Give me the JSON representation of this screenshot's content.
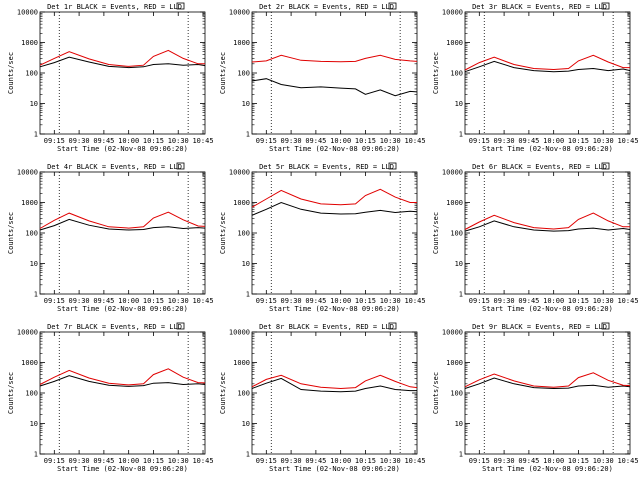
{
  "colors": {
    "events": "#000000",
    "lld": "#e00000",
    "axis": "#000000"
  },
  "chart_data": [
    {
      "type": "line",
      "title": "Det 1r BLACK = Events, RED = LLD",
      "xlabel": "Start Time (02-Nov-08 09:06:20)",
      "ylabel": "Counts/sec",
      "yscale": "log",
      "ylim": [
        1,
        10000
      ],
      "x_ticks": [
        "09:15",
        "09:30",
        "09:45",
        "10:00",
        "10:15",
        "10:30",
        "10:45"
      ],
      "y_ticks": [
        "1",
        "10",
        "100",
        "1000",
        "10000"
      ],
      "x_hours": [
        9.1056,
        9.25,
        9.4,
        9.6,
        9.8,
        10.0,
        10.15,
        10.25,
        10.4,
        10.55,
        10.7,
        10.77
      ],
      "series": [
        {
          "name": "Events",
          "values": [
            160,
            220,
            330,
            230,
            165,
            150,
            160,
            190,
            200,
            180,
            190,
            175
          ]
        },
        {
          "name": "LLD",
          "values": [
            180,
            300,
            500,
            290,
            190,
            165,
            180,
            350,
            550,
            300,
            200,
            200
          ]
        }
      ]
    },
    {
      "type": "line",
      "title": "Det 2r BLACK = Events, RED = LLD",
      "xlabel": "Start Time (02-Nov-08 09:06:20)",
      "ylabel": "Counts/sec",
      "yscale": "log",
      "ylim": [
        1,
        10000
      ],
      "x_ticks": [
        "09:15",
        "09:30",
        "09:45",
        "10:00",
        "10:15",
        "10:30",
        "10:45"
      ],
      "y_ticks": [
        "1",
        "10",
        "100",
        "1000",
        "10000"
      ],
      "x_hours": [
        9.1056,
        9.25,
        9.4,
        9.6,
        9.8,
        10.0,
        10.15,
        10.25,
        10.4,
        10.55,
        10.7,
        10.77
      ],
      "series": [
        {
          "name": "Events",
          "values": [
            55,
            65,
            42,
            33,
            35,
            32,
            30,
            20,
            28,
            18,
            25,
            24
          ]
        },
        {
          "name": "LLD",
          "values": [
            230,
            250,
            380,
            260,
            240,
            235,
            240,
            300,
            380,
            280,
            250,
            240
          ]
        }
      ]
    },
    {
      "type": "line",
      "title": "Det 3r BLACK = Events, RED = LLD",
      "xlabel": "Start Time (02-Nov-08 09:06:20)",
      "ylabel": "Counts/sec",
      "yscale": "log",
      "ylim": [
        1,
        10000
      ],
      "x_ticks": [
        "09:15",
        "09:30",
        "09:45",
        "10:00",
        "10:15",
        "10:30",
        "10:45"
      ],
      "y_ticks": [
        "1",
        "10",
        "100",
        "1000",
        "10000"
      ],
      "x_hours": [
        9.1056,
        9.25,
        9.4,
        9.6,
        9.8,
        10.0,
        10.15,
        10.25,
        10.4,
        10.55,
        10.7,
        10.77
      ],
      "series": [
        {
          "name": "Events",
          "values": [
            110,
            160,
            240,
            150,
            120,
            110,
            115,
            130,
            140,
            120,
            135,
            120
          ]
        },
        {
          "name": "LLD",
          "values": [
            125,
            220,
            330,
            190,
            140,
            130,
            140,
            250,
            380,
            230,
            150,
            150
          ]
        }
      ]
    },
    {
      "type": "line",
      "title": "Det 4r BLACK = Events, RED = LLD",
      "xlabel": "Start Time (02-Nov-08 09:06:20)",
      "ylabel": "Counts/sec",
      "yscale": "log",
      "ylim": [
        1,
        10000
      ],
      "x_ticks": [
        "09:15",
        "09:30",
        "09:45",
        "10:00",
        "10:15",
        "10:30",
        "10:45"
      ],
      "y_ticks": [
        "1",
        "10",
        "100",
        "1000",
        "10000"
      ],
      "x_hours": [
        9.1056,
        9.25,
        9.4,
        9.6,
        9.8,
        10.0,
        10.15,
        10.25,
        10.4,
        10.55,
        10.7,
        10.77
      ],
      "series": [
        {
          "name": "Events",
          "values": [
            125,
            175,
            280,
            180,
            135,
            125,
            130,
            150,
            160,
            140,
            150,
            145
          ]
        },
        {
          "name": "LLD",
          "values": [
            140,
            260,
            450,
            250,
            160,
            145,
            160,
            310,
            480,
            270,
            170,
            165
          ]
        }
      ]
    },
    {
      "type": "line",
      "title": "Det 5r BLACK = Events, RED = LLD",
      "xlabel": "Start Time (02-Nov-08 09:06:20)",
      "ylabel": "Counts/sec",
      "yscale": "log",
      "ylim": [
        1,
        10000
      ],
      "x_ticks": [
        "09:15",
        "09:30",
        "09:45",
        "10:00",
        "10:15",
        "10:30",
        "10:45"
      ],
      "y_ticks": [
        "1",
        "10",
        "100",
        "1000",
        "10000"
      ],
      "x_hours": [
        9.1056,
        9.25,
        9.4,
        9.6,
        9.8,
        10.0,
        10.15,
        10.25,
        10.4,
        10.55,
        10.7,
        10.77
      ],
      "series": [
        {
          "name": "Events",
          "values": [
            380,
            600,
            1000,
            600,
            450,
            420,
            430,
            480,
            550,
            470,
            520,
            500
          ]
        },
        {
          "name": "LLD",
          "values": [
            700,
            1300,
            2500,
            1300,
            900,
            850,
            900,
            1700,
            2700,
            1500,
            1000,
            1000
          ]
        }
      ]
    },
    {
      "type": "line",
      "title": "Det 6r BLACK = Events, RED = LLD",
      "xlabel": "Start Time (02-Nov-08 09:06:20)",
      "ylabel": "Counts/sec",
      "yscale": "log",
      "ylim": [
        1,
        10000
      ],
      "x_ticks": [
        "09:15",
        "09:30",
        "09:45",
        "10:00",
        "10:15",
        "10:30",
        "10:45"
      ],
      "y_ticks": [
        "1",
        "10",
        "100",
        "1000",
        "10000"
      ],
      "x_hours": [
        9.1056,
        9.25,
        9.4,
        9.6,
        9.8,
        10.0,
        10.15,
        10.25,
        10.4,
        10.55,
        10.7,
        10.77
      ],
      "series": [
        {
          "name": "Events",
          "values": [
            115,
            160,
            250,
            160,
            125,
            115,
            120,
            135,
            145,
            125,
            140,
            130
          ]
        },
        {
          "name": "LLD",
          "values": [
            130,
            230,
            380,
            220,
            150,
            135,
            150,
            280,
            450,
            250,
            160,
            160
          ]
        }
      ]
    },
    {
      "type": "line",
      "title": "Det 7r BLACK = Events, RED = LLD",
      "xlabel": "Start Time (02-Nov-08 09:06:20)",
      "ylabel": "Counts/sec",
      "yscale": "log",
      "ylim": [
        1,
        10000
      ],
      "x_ticks": [
        "09:15",
        "09:30",
        "09:45",
        "10:00",
        "10:15",
        "10:30",
        "10:45"
      ],
      "y_ticks": [
        "1",
        "10",
        "100",
        "1000",
        "10000"
      ],
      "x_hours": [
        9.1056,
        9.25,
        9.4,
        9.6,
        9.8,
        10.0,
        10.15,
        10.25,
        10.4,
        10.55,
        10.7,
        10.77
      ],
      "series": [
        {
          "name": "Events",
          "values": [
            170,
            240,
            370,
            240,
            180,
            165,
            175,
            210,
            220,
            190,
            200,
            190
          ]
        },
        {
          "name": "LLD",
          "values": [
            190,
            330,
            550,
            310,
            210,
            185,
            200,
            400,
            620,
            330,
            220,
            215
          ]
        }
      ]
    },
    {
      "type": "line",
      "title": "Det 8r BLACK = Events, RED = LLD",
      "xlabel": "Start Time (02-Nov-08 09:06:20)",
      "ylabel": "Counts/sec",
      "yscale": "log",
      "ylim": [
        1,
        10000
      ],
      "x_ticks": [
        "09:15",
        "09:30",
        "09:45",
        "10:00",
        "10:15",
        "10:30",
        "10:45"
      ],
      "y_ticks": [
        "1",
        "10",
        "100",
        "1000",
        "10000"
      ],
      "x_hours": [
        9.1056,
        9.25,
        9.4,
        9.6,
        9.8,
        10.0,
        10.15,
        10.25,
        10.4,
        10.55,
        10.7,
        10.77
      ],
      "series": [
        {
          "name": "Events",
          "values": [
            140,
            210,
            300,
            130,
            115,
            110,
            115,
            140,
            170,
            130,
            120,
            120
          ]
        },
        {
          "name": "LLD",
          "values": [
            160,
            280,
            380,
            200,
            155,
            140,
            150,
            250,
            380,
            240,
            160,
            150
          ]
        }
      ]
    },
    {
      "type": "line",
      "title": "Det 9r BLACK = Events, RED = LLD",
      "xlabel": "Start Time (02-Nov-08 09:06:20)",
      "ylabel": "Counts/sec",
      "yscale": "log",
      "ylim": [
        1,
        10000
      ],
      "x_ticks": [
        "09:15",
        "09:30",
        "09:45",
        "10:00",
        "10:15",
        "10:30",
        "10:45"
      ],
      "y_ticks": [
        "1",
        "10",
        "100",
        "1000",
        "10000"
      ],
      "x_hours": [
        9.1056,
        9.25,
        9.4,
        9.6,
        9.8,
        10.0,
        10.15,
        10.25,
        10.4,
        10.55,
        10.7,
        10.77
      ],
      "series": [
        {
          "name": "Events",
          "values": [
            140,
            200,
            310,
            200,
            150,
            140,
            145,
            170,
            180,
            155,
            170,
            160
          ]
        },
        {
          "name": "LLD",
          "values": [
            160,
            270,
            420,
            250,
            170,
            155,
            170,
            320,
            460,
            260,
            180,
            175
          ]
        }
      ]
    }
  ]
}
